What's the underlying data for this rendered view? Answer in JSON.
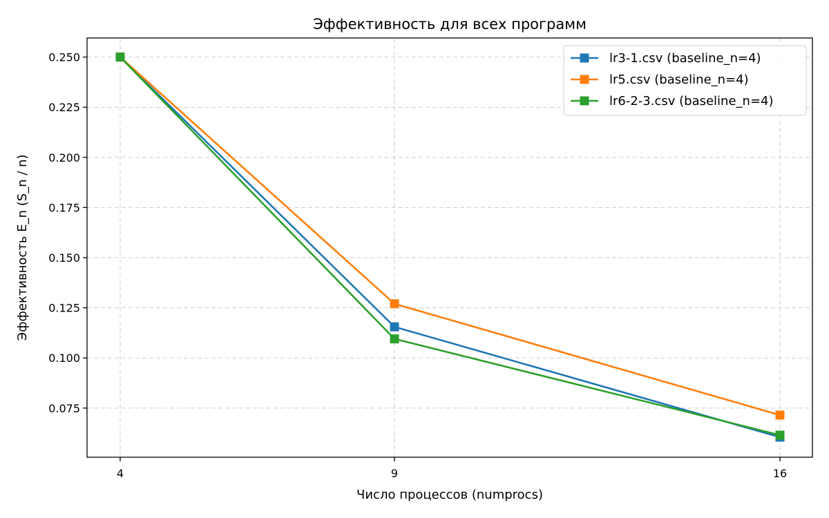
{
  "chart_data": {
    "type": "line",
    "title": "Эффективность для всех программ",
    "xlabel": "Число процессов (numprocs)",
    "ylabel": "Эффективность E_n (S_n / n)",
    "x_categories": [
      "4",
      "9",
      "16"
    ],
    "y_ticks": [
      "0.075",
      "0.100",
      "0.125",
      "0.150",
      "0.175",
      "0.200",
      "0.225",
      "0.250"
    ],
    "ylim": [
      0.0505,
      0.2595
    ],
    "grid": true,
    "legend_position": "top-right",
    "marker": "square",
    "series": [
      {
        "name": "lr3-1.csv (baseline_n=4)",
        "color": "#1f77b4",
        "values": [
          0.25,
          0.1155,
          0.0605
        ]
      },
      {
        "name": "lr5.csv (baseline_n=4)",
        "color": "#ff7f0e",
        "values": [
          0.25,
          0.127,
          0.0715
        ]
      },
      {
        "name": "lr6-2-3.csv (baseline_n=4)",
        "color": "#2ca02c",
        "values": [
          0.25,
          0.1095,
          0.0615
        ]
      }
    ]
  }
}
